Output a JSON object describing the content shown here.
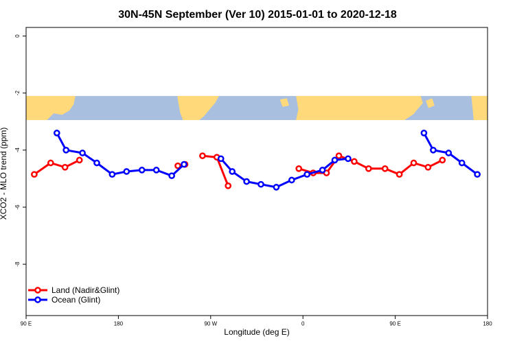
{
  "chart_data": {
    "type": "line",
    "title": "30N-45N September (Ver 10)   2015-01-01 to 2020-12-18",
    "xlabel": "Longitude (deg E)",
    "ylabel": "XCO2 - MLO trend (ppm)",
    "xlim": [
      90,
      540
    ],
    "ylim": [
      -9.8,
      0.3
    ],
    "x_ticks": [
      {
        "value": 90,
        "label": "90 E"
      },
      {
        "value": 180,
        "label": "180"
      },
      {
        "value": 270,
        "label": "90 W"
      },
      {
        "value": 360,
        "label": "0"
      },
      {
        "value": 450,
        "label": "90 E"
      },
      {
        "value": 540,
        "label": "180"
      }
    ],
    "y_ticks": [
      {
        "value": 0,
        "label": "0"
      },
      {
        "value": -2,
        "label": "-2"
      },
      {
        "value": -4,
        "label": "-4"
      },
      {
        "value": -6,
        "label": "-6"
      },
      {
        "value": -8,
        "label": "-8"
      }
    ],
    "map_strip": {
      "y_top": -2.1,
      "y_bottom": -2.95,
      "land_color": "#FFD97A",
      "ocean_color": "#A9BFE0"
    },
    "legend_position": "bottom-left",
    "series": [
      {
        "name": "Land (Nadir&Glint)",
        "color": "#FF0000",
        "segments": [
          [
            [
              98,
              -4.85
            ],
            [
              114,
              -4.45
            ],
            [
              128,
              -4.6
            ],
            [
              142,
              -4.35
            ]
          ],
          [
            [
              238,
              -4.55
            ],
            [
              245,
              -4.5
            ]
          ],
          [
            [
              262,
              -4.2
            ],
            [
              276,
              -4.25
            ],
            [
              287,
              -5.25
            ]
          ],
          [
            [
              356,
              -4.65
            ],
            [
              370,
              -4.8
            ],
            [
              383,
              -4.8
            ],
            [
              395,
              -4.2
            ],
            [
              410,
              -4.4
            ],
            [
              424,
              -4.65
            ],
            [
              440,
              -4.65
            ],
            [
              454,
              -4.85
            ],
            [
              468,
              -4.45
            ],
            [
              482,
              -4.6
            ],
            [
              496,
              -4.35
            ]
          ]
        ]
      },
      {
        "name": "Ocean (Glint)",
        "color": "#0000FF",
        "segments": [
          [
            [
              120,
              -3.4
            ],
            [
              129,
              -4.0
            ],
            [
              145,
              -4.1
            ],
            [
              159,
              -4.45
            ],
            [
              174,
              -4.85
            ],
            [
              188,
              -4.75
            ],
            [
              203,
              -4.7
            ],
            [
              217,
              -4.7
            ],
            [
              232,
              -4.9
            ],
            [
              244,
              -4.5
            ]
          ],
          [
            [
              280,
              -4.3
            ],
            [
              291,
              -4.75
            ],
            [
              305,
              -5.1
            ],
            [
              319,
              -5.2
            ],
            [
              334,
              -5.3
            ],
            [
              349,
              -5.05
            ],
            [
              364,
              -4.85
            ],
            [
              379,
              -4.7
            ],
            [
              391,
              -4.35
            ],
            [
              404,
              -4.3
            ]
          ],
          [
            [
              478,
              -3.4
            ],
            [
              487,
              -4.0
            ],
            [
              502,
              -4.1
            ],
            [
              515,
              -4.45
            ],
            [
              530,
              -4.85
            ]
          ]
        ]
      }
    ]
  }
}
